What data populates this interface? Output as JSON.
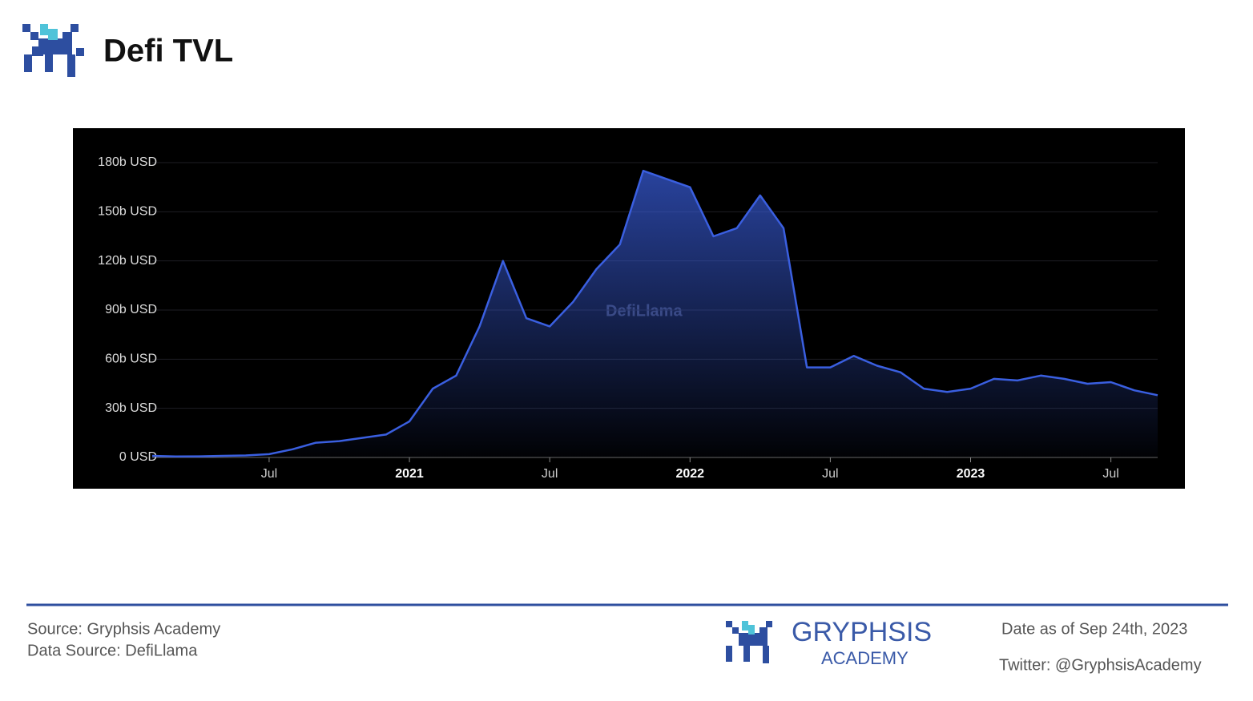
{
  "title": "Defi TVL",
  "chart_data": {
    "type": "area",
    "watermark": "DefiLlama",
    "color": "#3a5fe0",
    "grid": true,
    "x": [
      "2020-02",
      "2020-03",
      "2020-04",
      "2020-05",
      "2020-06",
      "2020-07",
      "2020-08",
      "2020-09",
      "2020-10",
      "2020-11",
      "2020-12",
      "2021-01",
      "2021-02",
      "2021-03",
      "2021-04",
      "2021-05",
      "2021-06",
      "2021-07",
      "2021-08",
      "2021-09",
      "2021-10",
      "2021-11",
      "2021-12",
      "2022-01",
      "2022-02",
      "2022-03",
      "2022-04",
      "2022-05",
      "2022-06",
      "2022-07",
      "2022-08",
      "2022-09",
      "2022-10",
      "2022-11",
      "2022-12",
      "2023-01",
      "2023-02",
      "2023-03",
      "2023-04",
      "2023-05",
      "2023-06",
      "2023-07",
      "2023-08",
      "2023-09"
    ],
    "values": [
      1,
      0.6,
      0.7,
      1,
      1.2,
      2,
      5,
      9,
      10,
      12,
      14,
      22,
      42,
      50,
      80,
      120,
      85,
      80,
      95,
      115,
      130,
      175,
      170,
      165,
      135,
      140,
      160,
      140,
      55,
      55,
      62,
      56,
      52,
      42,
      40,
      42,
      48,
      47,
      50,
      48,
      45,
      46,
      41,
      38
    ],
    "xlim": [
      "2020-02",
      "2023-09"
    ],
    "xticks": [
      {
        "value": "2020-07",
        "label": "Jul"
      },
      {
        "value": "2021-01",
        "label": "2021"
      },
      {
        "value": "2021-07",
        "label": "Jul"
      },
      {
        "value": "2022-01",
        "label": "2022"
      },
      {
        "value": "2022-07",
        "label": "Jul"
      },
      {
        "value": "2023-01",
        "label": "2023"
      },
      {
        "value": "2023-07",
        "label": "Jul"
      }
    ],
    "ylim": [
      0,
      180
    ],
    "yticks": [
      {
        "value": 0,
        "label": "0 USD"
      },
      {
        "value": 30,
        "label": "30b USD"
      },
      {
        "value": 60,
        "label": "60b USD"
      },
      {
        "value": 90,
        "label": "90b USD"
      },
      {
        "value": 120,
        "label": "120b USD"
      },
      {
        "value": 150,
        "label": "150b USD"
      },
      {
        "value": 180,
        "label": "180b USD"
      }
    ]
  },
  "footer": {
    "source": "Source: Gryphsis Academy",
    "data_source": "Data Source: DefiLlama",
    "brand": "GRYPHSIS",
    "brand_sub": "ACADEMY",
    "date": "Date as of Sep 24th, 2023",
    "twitter": "Twitter: @GryphsisAcademy"
  }
}
